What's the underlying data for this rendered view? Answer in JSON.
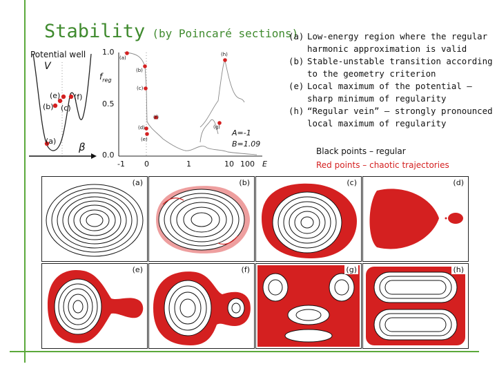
{
  "title": {
    "main": "Stability",
    "sub": "(by Poincaré sections)"
  },
  "legend": [
    {
      "key": "(a)",
      "text": "Low-energy region where the regular harmonic approximation is valid"
    },
    {
      "key": "(b)",
      "text": "Stable-unstable transition according to the geometry criterion"
    },
    {
      "key": "(e)",
      "text": "Local maximum of the potential – sharp minimum of regularity"
    },
    {
      "key": "(h)",
      "text": "“Regular vein” – strongly pronounced local maximum of regularity"
    }
  ],
  "notes": {
    "black": "Black points – regular",
    "red": "Red points – chaotic trajectories"
  },
  "potential": {
    "title": "Potential well",
    "v_label": "V",
    "beta_label": "β",
    "points": [
      "(a)",
      "(b)",
      "(c)",
      "(e)",
      "(f)"
    ]
  },
  "regularity_plot": {
    "y_label": "f",
    "y_sub": "reg",
    "y_ticks": [
      "1.0",
      "0.5",
      "0.0"
    ],
    "x_ticks": [
      "-1",
      "0",
      "1",
      "10",
      "100"
    ],
    "x_label": "E",
    "annot_A": "A=-1",
    "annot_B": "B=1.09",
    "point_labels": [
      "(a)",
      "(b)",
      "(c)",
      "(d)",
      "(e)",
      "(f)",
      "(g)",
      "(h)"
    ]
  },
  "panels": [
    "(a)",
    "(b)",
    "(c)",
    "(d)",
    "(e)",
    "(f)",
    "(g)",
    "(h)"
  ],
  "colors": {
    "accent_green": "#3f8a2e",
    "chaotic_red": "#d42020",
    "regular_black": "#111111"
  }
}
